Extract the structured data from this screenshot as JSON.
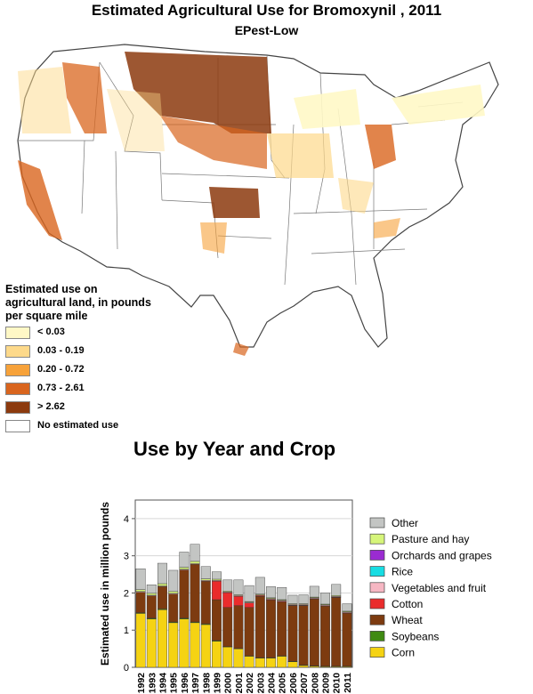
{
  "header": {
    "title": "Estimated Agricultural Use for Bromoxynil , 2011",
    "subtitle": "EPest-Low"
  },
  "map_legend": {
    "title": "Estimated use on agricultural land, in pounds per square mile",
    "items": [
      {
        "label": "< 0.03",
        "color": "#fff8c6"
      },
      {
        "label": "0.03 - 0.19",
        "color": "#fdd98a"
      },
      {
        "label": "0.20 - 0.72",
        "color": "#f7a23a"
      },
      {
        "label": "0.73 - 2.61",
        "color": "#d9651e"
      },
      {
        "label": "> 2.62",
        "color": "#8c3a0e"
      },
      {
        "label": "No estimated use",
        "color": "#ffffff"
      }
    ]
  },
  "chart_data": {
    "type": "bar",
    "stacked": true,
    "title": "Use by Year and Crop",
    "ylabel": "Estimated use in million pounds",
    "ylim": [
      0,
      4.5
    ],
    "yticks": [
      0,
      1,
      2,
      3,
      4
    ],
    "categories": [
      "1992",
      "1993",
      "1994",
      "1995",
      "1996",
      "1997",
      "1998",
      "1999",
      "2000",
      "2001",
      "2002",
      "2003",
      "2004",
      "2005",
      "2006",
      "2007",
      "2008",
      "2009",
      "2010",
      "2011"
    ],
    "series": [
      {
        "name": "Corn",
        "color": "#f5d313",
        "values": [
          1.45,
          1.3,
          1.55,
          1.2,
          1.3,
          1.2,
          1.15,
          0.7,
          0.55,
          0.5,
          0.3,
          0.25,
          0.25,
          0.3,
          0.15,
          0.05,
          0.03,
          0.02,
          0.02,
          0.02
        ]
      },
      {
        "name": "Soybeans",
        "color": "#3f8a12",
        "values": [
          0.02,
          0.02,
          0.02,
          0.02,
          0.02,
          0.02,
          0.02,
          0.02,
          0.01,
          0.01,
          0.01,
          0.01,
          0.01,
          0.01,
          0.01,
          0.01,
          0.01,
          0.01,
          0.01,
          0.01
        ]
      },
      {
        "name": "Wheat",
        "color": "#7d3b10",
        "values": [
          0.55,
          0.6,
          0.6,
          0.75,
          1.3,
          1.55,
          1.15,
          1.1,
          1.05,
          1.15,
          1.3,
          1.65,
          1.55,
          1.45,
          1.5,
          1.6,
          1.8,
          1.62,
          1.85,
          1.43
        ]
      },
      {
        "name": "Cotton",
        "color": "#ea2c2c",
        "values": [
          0,
          0,
          0,
          0,
          0,
          0,
          0,
          0.5,
          0.4,
          0.25,
          0.12,
          0.02,
          0.02,
          0.02,
          0.01,
          0.01,
          0.01,
          0.01,
          0.01,
          0.01
        ]
      },
      {
        "name": "Vegetables and fruit",
        "color": "#f6b7c3",
        "values": [
          0.02,
          0.02,
          0.02,
          0.02,
          0.02,
          0.02,
          0.02,
          0.02,
          0.02,
          0.02,
          0.02,
          0.02,
          0.02,
          0.02,
          0.02,
          0.02,
          0.02,
          0.02,
          0.02,
          0.02
        ]
      },
      {
        "name": "Rice",
        "color": "#17dde3",
        "values": [
          0,
          0,
          0,
          0,
          0,
          0,
          0,
          0,
          0,
          0,
          0,
          0,
          0,
          0,
          0,
          0,
          0,
          0,
          0,
          0
        ]
      },
      {
        "name": "Orchards and grapes",
        "color": "#9a2bd1",
        "values": [
          0,
          0,
          0,
          0,
          0,
          0,
          0,
          0,
          0,
          0,
          0,
          0,
          0,
          0,
          0,
          0,
          0,
          0,
          0,
          0
        ]
      },
      {
        "name": "Pasture and hay",
        "color": "#d6f57a",
        "values": [
          0.05,
          0.05,
          0.06,
          0.05,
          0.05,
          0.06,
          0.04,
          0.03,
          0.02,
          0.02,
          0.02,
          0.02,
          0.02,
          0.02,
          0.02,
          0.02,
          0.02,
          0.02,
          0.02,
          0.02
        ]
      },
      {
        "name": "Other",
        "color": "#c3c5c3",
        "values": [
          0.56,
          0.23,
          0.55,
          0.57,
          0.41,
          0.46,
          0.33,
          0.2,
          0.3,
          0.4,
          0.43,
          0.45,
          0.3,
          0.33,
          0.23,
          0.24,
          0.29,
          0.3,
          0.3,
          0.2
        ]
      }
    ],
    "legend_order": [
      "Other",
      "Pasture and hay",
      "Orchards and grapes",
      "Rice",
      "Vegetables and fruit",
      "Cotton",
      "Wheat",
      "Soybeans",
      "Corn"
    ],
    "grid": true,
    "legend": "right"
  }
}
